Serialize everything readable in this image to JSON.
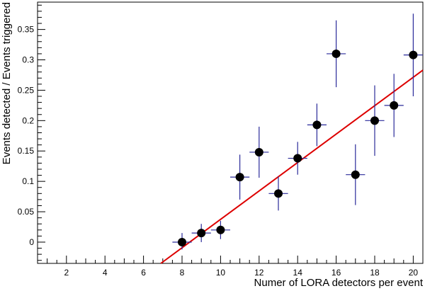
{
  "chart_data": {
    "type": "scatter",
    "title": "",
    "xlabel": "Numer of LORA detectors per event",
    "ylabel": "Events detected / Events triggered",
    "xlim": [
      0.5,
      20.5
    ],
    "ylim": [
      -0.035,
      0.395
    ],
    "grid": false,
    "x_ticks": [
      2,
      4,
      6,
      8,
      10,
      12,
      14,
      16,
      18,
      20
    ],
    "x_tick_labels": [
      "2",
      "4",
      "6",
      "8",
      "10",
      "12",
      "14",
      "16",
      "18",
      "20"
    ],
    "y_ticks": [
      0,
      0.05,
      0.1,
      0.15,
      0.2,
      0.25,
      0.3,
      0.35
    ],
    "y_tick_labels": [
      "0",
      "0.05",
      "0.1",
      "0.15",
      "0.2",
      "0.25",
      "0.3",
      "0.35"
    ],
    "points": [
      {
        "x": 8,
        "y": 0.0,
        "xerr": 0.5,
        "yerr_low": 0.012,
        "yerr_high": 0.015
      },
      {
        "x": 9,
        "y": 0.015,
        "xerr": 0.5,
        "yerr_low": 0.015,
        "yerr_high": 0.015
      },
      {
        "x": 10,
        "y": 0.02,
        "xerr": 0.5,
        "yerr_low": 0.015,
        "yerr_high": 0.015
      },
      {
        "x": 11,
        "y": 0.107,
        "xerr": 0.5,
        "yerr_low": 0.037,
        "yerr_high": 0.037
      },
      {
        "x": 12,
        "y": 0.148,
        "xerr": 0.5,
        "yerr_low": 0.042,
        "yerr_high": 0.042
      },
      {
        "x": 13,
        "y": 0.08,
        "xerr": 0.5,
        "yerr_low": 0.028,
        "yerr_high": 0.028
      },
      {
        "x": 14,
        "y": 0.138,
        "xerr": 0.5,
        "yerr_low": 0.027,
        "yerr_high": 0.027
      },
      {
        "x": 15,
        "y": 0.193,
        "xerr": 0.5,
        "yerr_low": 0.035,
        "yerr_high": 0.035
      },
      {
        "x": 16,
        "y": 0.31,
        "xerr": 0.5,
        "yerr_low": 0.055,
        "yerr_high": 0.055
      },
      {
        "x": 17,
        "y": 0.111,
        "xerr": 0.5,
        "yerr_low": 0.05,
        "yerr_high": 0.05
      },
      {
        "x": 18,
        "y": 0.2,
        "xerr": 0.5,
        "yerr_low": 0.058,
        "yerr_high": 0.058
      },
      {
        "x": 19,
        "y": 0.225,
        "xerr": 0.5,
        "yerr_low": 0.052,
        "yerr_high": 0.052
      },
      {
        "x": 20,
        "y": 0.308,
        "xerr": 0.5,
        "yerr_low": 0.068,
        "yerr_high": 0.068
      }
    ],
    "fit_line": {
      "x": [
        6.9,
        20.5
      ],
      "y": [
        -0.035,
        0.283
      ]
    },
    "colors": {
      "marker": "#000000",
      "error_bars": "#2a2a9a",
      "fit_line": "#dd0000",
      "axes": "#000000"
    }
  }
}
